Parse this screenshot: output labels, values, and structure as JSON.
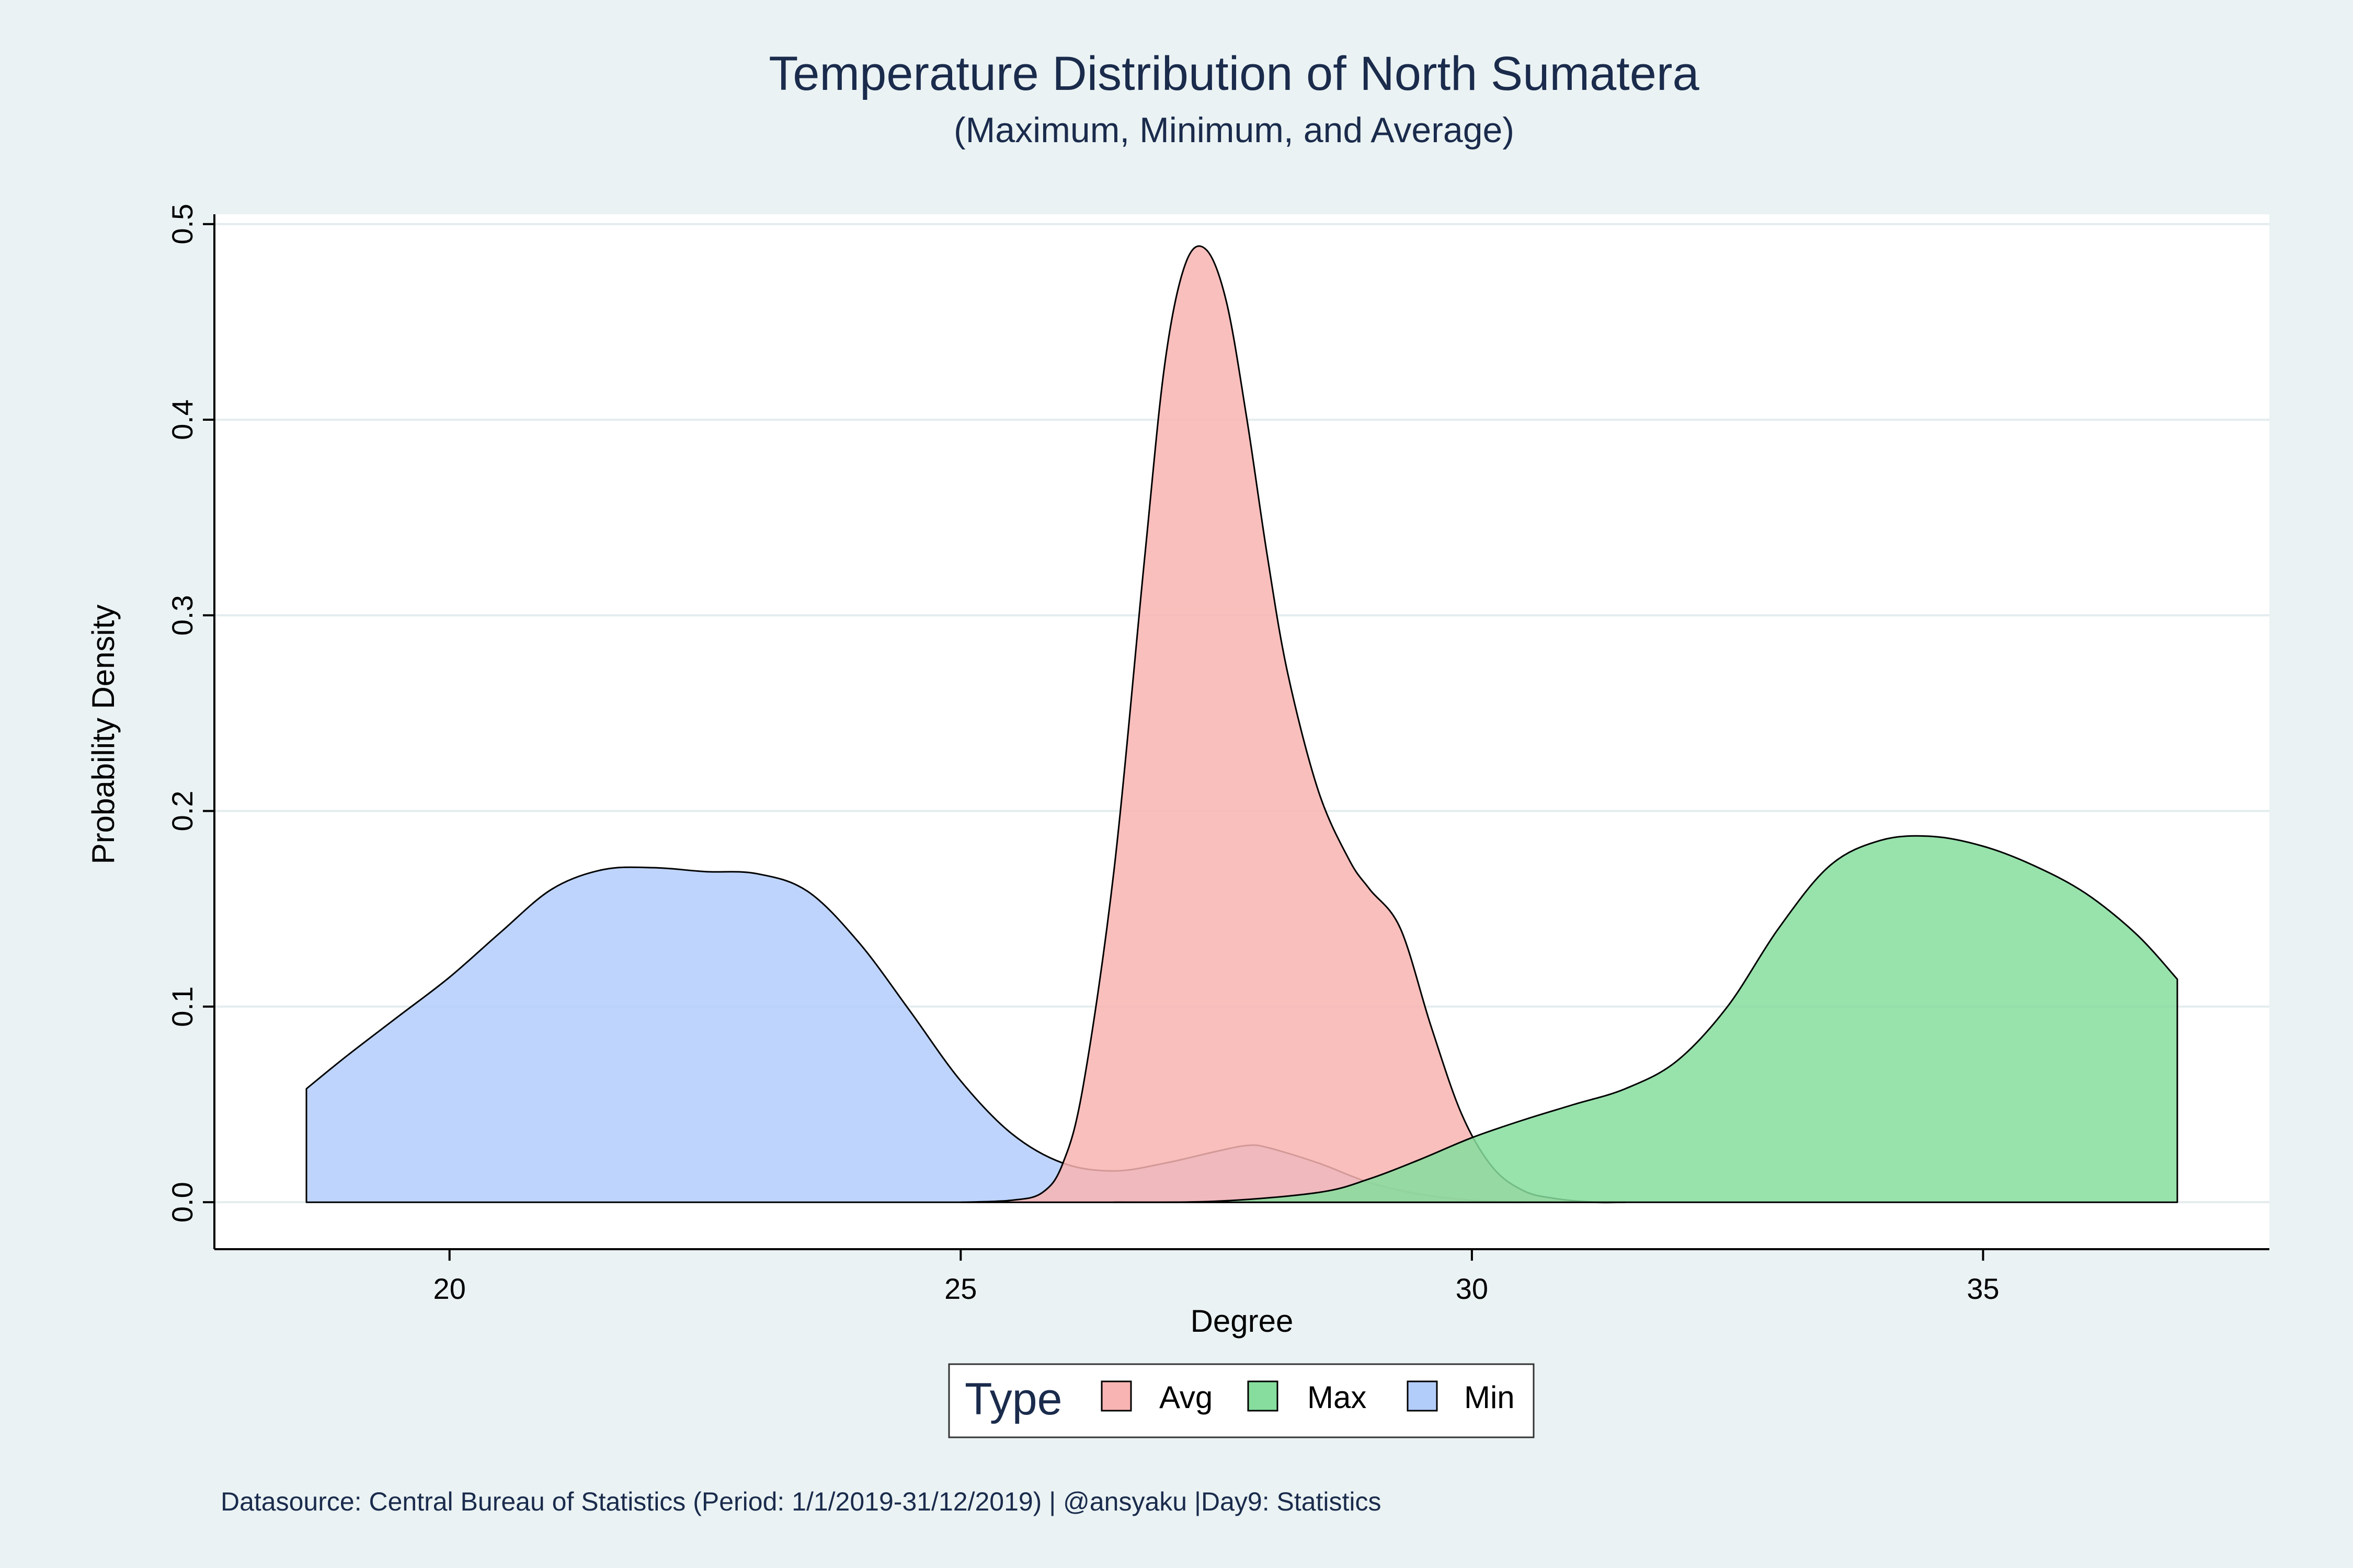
{
  "chart_data": {
    "type": "area",
    "title": "Temperature Distribution of North Sumatera",
    "subtitle": "(Maximum, Minimum, and Average)",
    "xlabel": "Degree",
    "ylabel": "Probability Density",
    "xlim": [
      17.7,
      37.8
    ],
    "ylim": [
      -0.024,
      0.505
    ],
    "x_ticks": [
      20,
      25,
      30,
      35
    ],
    "y_ticks": [
      0.0,
      0.1,
      0.2,
      0.3,
      0.4,
      0.5
    ],
    "y_tick_labels": [
      "0.0",
      "0.1",
      "0.2",
      "0.3",
      "0.4",
      "0.5"
    ],
    "grid": true,
    "legend": {
      "title": "Type",
      "position": "bottom",
      "entries": [
        "Avg",
        "Max",
        "Min"
      ]
    },
    "colors": {
      "Avg": "#f8b4b2",
      "Max": "#86dd9d",
      "Min": "#b3cdfb"
    },
    "series": [
      {
        "name": "Min",
        "x": [
          18.6,
          19.0,
          19.5,
          20.0,
          20.5,
          21.0,
          21.5,
          22.0,
          22.5,
          23.0,
          23.5,
          24.0,
          24.5,
          25.0,
          25.5,
          26.0,
          26.5,
          27.0,
          27.5,
          27.8,
          28.0,
          28.5,
          29.0,
          29.5,
          30.0,
          30.5
        ],
        "y": [
          0.058,
          0.075,
          0.095,
          0.115,
          0.138,
          0.16,
          0.17,
          0.171,
          0.169,
          0.168,
          0.159,
          0.133,
          0.098,
          0.062,
          0.035,
          0.02,
          0.016,
          0.02,
          0.026,
          0.029,
          0.028,
          0.02,
          0.01,
          0.004,
          0.001,
          0.0
        ]
      },
      {
        "name": "Avg",
        "x": [
          25.0,
          25.5,
          25.8,
          26.0,
          26.2,
          26.5,
          26.8,
          27.0,
          27.2,
          27.4,
          27.6,
          27.8,
          28.0,
          28.2,
          28.5,
          28.8,
          29.0,
          29.3,
          29.6,
          29.9,
          30.2,
          30.5,
          30.8,
          31.2,
          31.5
        ],
        "y": [
          0.0,
          0.001,
          0.005,
          0.02,
          0.06,
          0.17,
          0.33,
          0.43,
          0.48,
          0.487,
          0.46,
          0.4,
          0.33,
          0.27,
          0.21,
          0.175,
          0.16,
          0.14,
          0.09,
          0.045,
          0.018,
          0.006,
          0.002,
          0.0,
          0.0
        ]
      },
      {
        "name": "Max",
        "x": [
          26.5,
          27.5,
          28.5,
          29.0,
          29.5,
          30.0,
          30.5,
          31.0,
          31.5,
          32.0,
          32.5,
          33.0,
          33.5,
          34.0,
          34.5,
          35.0,
          35.5,
          36.0,
          36.5,
          36.9
        ],
        "y": [
          0.0,
          0.0005,
          0.005,
          0.012,
          0.022,
          0.033,
          0.042,
          0.05,
          0.058,
          0.072,
          0.1,
          0.14,
          0.172,
          0.185,
          0.187,
          0.182,
          0.172,
          0.158,
          0.137,
          0.114
        ]
      }
    ],
    "caption": "Datasource: Central Bureau of Statistics (Period: 1/1/2019-31/12/2019) | @ansyaku |Day9: Statistics"
  }
}
